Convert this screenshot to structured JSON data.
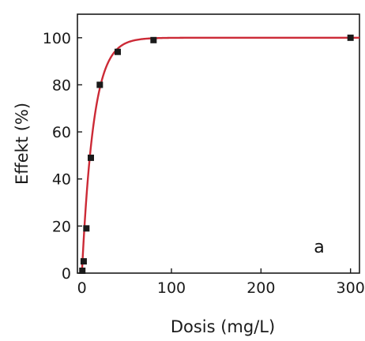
{
  "chart_data": {
    "type": "scatter",
    "title": "",
    "xlabel": "Dosis (mg/L)",
    "ylabel": "Effekt (%)",
    "panel_label": "a",
    "xlim": [
      -5,
      310
    ],
    "ylim": [
      0,
      110
    ],
    "x_ticks": [
      0,
      100,
      200,
      300
    ],
    "y_ticks": [
      0,
      20,
      40,
      60,
      80,
      100
    ],
    "grid": false,
    "series": [
      {
        "marker_color": "#1a1a1a",
        "points": [
          {
            "x": 0.5,
            "y": 1
          },
          {
            "x": 2,
            "y": 5
          },
          {
            "x": 5,
            "y": 19
          },
          {
            "x": 10,
            "y": 49
          },
          {
            "x": 20,
            "y": 80
          },
          {
            "x": 40,
            "y": 94
          },
          {
            "x": 80,
            "y": 99
          },
          {
            "x": 300,
            "y": 100
          }
        ]
      }
    ],
    "fit_curve": {
      "color": "#cc2a36",
      "model": "y = 100 * (1 - exp(-x / 13))"
    }
  }
}
